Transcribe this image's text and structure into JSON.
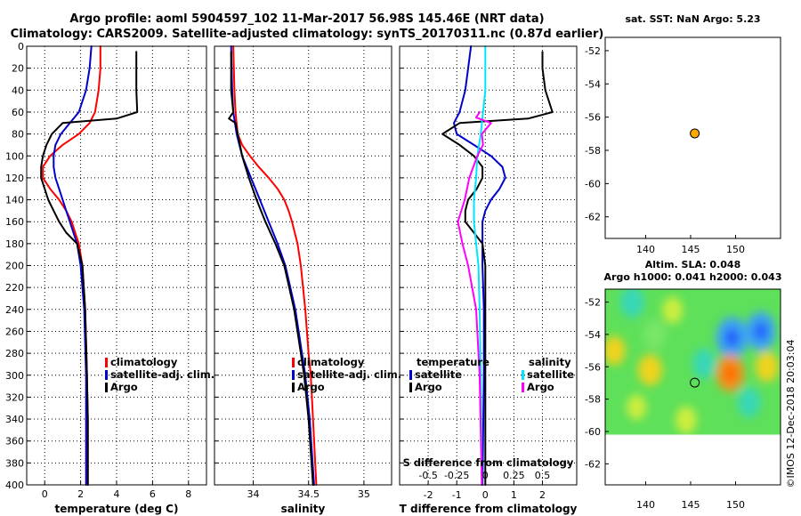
{
  "header": {
    "title": "Argo profile: aoml 5904597_102 11-Mar-2017 56.98S 145.46E (NRT data)",
    "subtitle": "Climatology: CARS2009. Satellite-adjusted climatology: synTS_20170311.nc (0.87d earlier)"
  },
  "watermark": "©IMOS 12-Dec-2018 20:03:04",
  "colors": {
    "climatology": "#ff0000",
    "satellite": "#0000cc",
    "argo": "#000000",
    "satellite_salinity": "#00e6ff",
    "argo_salinity": "#ff00ff",
    "marker": "#ffaa00"
  },
  "chart_data": [
    {
      "type": "line",
      "id": "temperature",
      "xlabel": "temperature (deg C)",
      "ylabel": "",
      "xlim": [
        -1,
        9
      ],
      "ylim": [
        400,
        0
      ],
      "xticks": [
        0,
        2,
        4,
        6,
        8
      ],
      "yticks": [
        0,
        20,
        40,
        60,
        80,
        100,
        120,
        140,
        160,
        180,
        200,
        220,
        240,
        260,
        280,
        300,
        320,
        340,
        360,
        380,
        400
      ],
      "grid": true,
      "legend": [
        "climatology",
        "satellite-adj. clim.",
        "Argo"
      ],
      "legend_position": "lower-right",
      "series": [
        {
          "name": "climatology",
          "color": "#ff0000",
          "depth": [
            0,
            20,
            40,
            60,
            70,
            80,
            90,
            100,
            110,
            120,
            130,
            140,
            150,
            160,
            170,
            180,
            200,
            240,
            300,
            340,
            400
          ],
          "values": [
            3.1,
            3.1,
            3.0,
            2.8,
            2.5,
            1.9,
            1.0,
            0.3,
            -0.1,
            -0.1,
            0.3,
            0.8,
            1.2,
            1.5,
            1.7,
            1.9,
            2.1,
            2.25,
            2.35,
            2.4,
            2.4
          ]
        },
        {
          "name": "satellite-adj. clim.",
          "color": "#0000cc",
          "depth": [
            0,
            20,
            40,
            60,
            70,
            80,
            90,
            100,
            110,
            120,
            130,
            140,
            150,
            160,
            170,
            180,
            200,
            240,
            300,
            340,
            400
          ],
          "values": [
            2.6,
            2.5,
            2.3,
            1.9,
            1.4,
            0.9,
            0.6,
            0.5,
            0.5,
            0.6,
            0.8,
            1.0,
            1.2,
            1.4,
            1.6,
            1.8,
            2.0,
            2.2,
            2.3,
            2.3,
            2.3
          ]
        },
        {
          "name": "Argo",
          "color": "#000000",
          "depth": [
            5,
            20,
            40,
            60,
            66,
            70,
            80,
            90,
            100,
            110,
            120,
            130,
            140,
            150,
            160,
            170,
            180,
            200,
            240,
            300,
            340,
            400
          ],
          "values": [
            5.1,
            5.1,
            5.1,
            5.15,
            4.0,
            1.0,
            0.4,
            0.1,
            -0.1,
            -0.2,
            -0.2,
            0.0,
            0.2,
            0.5,
            0.8,
            1.2,
            1.8,
            2.1,
            2.25,
            2.35,
            2.4,
            2.4
          ]
        }
      ]
    },
    {
      "type": "line",
      "id": "salinity",
      "xlabel": "salinity",
      "ylabel": "",
      "xlim": [
        33.65,
        35.25
      ],
      "ylim": [
        400,
        0
      ],
      "xticks": [
        34,
        34.5,
        35
      ],
      "xtick_labels": [
        "34",
        "34.5",
        "35"
      ],
      "grid": true,
      "legend": [
        "climatology",
        "satellite-adj. clim.",
        "Argo"
      ],
      "legend_position": "lower-right",
      "series": [
        {
          "name": "climatology",
          "color": "#ff0000",
          "depth": [
            0,
            40,
            60,
            80,
            90,
            100,
            110,
            120,
            130,
            140,
            150,
            160,
            180,
            200,
            240,
            280,
            300,
            340,
            400
          ],
          "values": [
            33.82,
            33.83,
            33.84,
            33.86,
            33.9,
            33.97,
            34.05,
            34.14,
            34.22,
            34.28,
            34.32,
            34.35,
            34.4,
            34.43,
            34.47,
            34.5,
            34.52,
            34.54,
            34.57
          ]
        },
        {
          "name": "satellite-adj. clim.",
          "color": "#0000cc",
          "depth": [
            0,
            40,
            60,
            80,
            100,
            120,
            140,
            160,
            180,
            200,
            240,
            280,
            300,
            340,
            400
          ],
          "values": [
            33.8,
            33.81,
            33.82,
            33.85,
            33.9,
            33.98,
            34.06,
            34.14,
            34.22,
            34.29,
            34.38,
            34.44,
            34.47,
            34.51,
            34.55
          ]
        },
        {
          "name": "Argo",
          "color": "#000000",
          "depth": [
            5,
            40,
            60,
            66,
            70,
            80,
            100,
            120,
            140,
            160,
            180,
            200,
            240,
            280,
            300,
            340,
            400
          ],
          "values": [
            33.8,
            33.8,
            33.82,
            33.78,
            33.84,
            33.86,
            33.9,
            33.96,
            34.03,
            34.11,
            34.2,
            34.28,
            34.37,
            34.43,
            34.46,
            34.5,
            34.54
          ]
        }
      ]
    },
    {
      "type": "line",
      "id": "difference",
      "xlabel": "T difference from climatology",
      "secondary_xlabel": "S difference from climatology",
      "xlim": [
        -3,
        3.2
      ],
      "ylim": [
        400,
        0
      ],
      "xticks": [
        -2,
        -1,
        0,
        1,
        2
      ],
      "secondary_xticks": [
        -0.5,
        -0.25,
        0,
        0.25,
        0.5
      ],
      "secondary_xtick_labels": [
        "-0.5",
        "-0.25",
        "0",
        "0.25",
        "0.5"
      ],
      "grid": true,
      "legend_temperature": {
        "heading": "temperature",
        "items": [
          "satellite",
          "Argo"
        ]
      },
      "legend_salinity": {
        "heading": "salinity",
        "items": [
          "satellite",
          "Argo"
        ]
      },
      "series": [
        {
          "name": "T satellite",
          "color": "#0000cc",
          "depth": [
            0,
            20,
            40,
            60,
            70,
            80,
            90,
            100,
            110,
            120,
            130,
            140,
            150,
            160,
            170,
            180,
            200,
            240,
            300,
            400
          ],
          "values": [
            -0.5,
            -0.6,
            -0.7,
            -0.9,
            -1.1,
            -1.0,
            -0.4,
            0.2,
            0.6,
            0.7,
            0.5,
            0.2,
            0.0,
            -0.1,
            -0.1,
            -0.1,
            -0.1,
            -0.05,
            -0.05,
            -0.1
          ]
        },
        {
          "name": "T Argo",
          "color": "#000000",
          "depth": [
            5,
            20,
            40,
            60,
            66,
            70,
            80,
            90,
            100,
            110,
            120,
            130,
            140,
            150,
            160,
            180,
            200,
            240,
            300,
            340,
            400
          ],
          "values": [
            2.0,
            2.0,
            2.1,
            2.35,
            1.5,
            -0.9,
            -1.5,
            -0.9,
            -0.4,
            -0.1,
            -0.1,
            -0.3,
            -0.6,
            -0.7,
            -0.7,
            -0.1,
            0.0,
            0.0,
            0.0,
            0.0,
            0.0
          ]
        },
        {
          "name": "S satellite",
          "color": "#00e6ff",
          "depth": [
            0,
            40,
            60,
            80,
            100,
            120,
            140,
            160,
            180,
            200,
            240,
            300,
            400
          ],
          "values": [
            0.0,
            0.0,
            -0.02,
            -0.04,
            -0.07,
            -0.08,
            -0.1,
            -0.1,
            -0.08,
            -0.06,
            -0.05,
            -0.04,
            -0.03
          ]
        },
        {
          "name": "S Argo",
          "color": "#ff00ff",
          "depth": [
            60,
            65,
            70,
            80,
            90,
            100,
            120,
            140,
            160,
            180,
            200,
            240,
            300,
            400
          ],
          "values": [
            -0.05,
            -0.08,
            0.05,
            -0.03,
            -0.02,
            -0.07,
            -0.14,
            -0.18,
            -0.24,
            -0.2,
            -0.15,
            -0.08,
            -0.05,
            -0.03
          ]
        }
      ]
    },
    {
      "type": "scatter",
      "id": "sst_map",
      "title": "sat. SST: NaN Argo: 5.23",
      "xlim": [
        135.5,
        155
      ],
      "ylim": [
        -63.3,
        -51.2
      ],
      "xticks": [
        140,
        145,
        150
      ],
      "yticks": [
        -52,
        -54,
        -56,
        -58,
        -60,
        -62
      ],
      "points": [
        {
          "lon": 145.46,
          "lat": -56.98,
          "color": "#ffaa00"
        }
      ]
    },
    {
      "type": "heatmap",
      "id": "sla_map",
      "title": "Altim. SLA: 0.048",
      "subtitle": "Argo h1000: 0.041 h2000: 0.043",
      "xlim": [
        135.5,
        155
      ],
      "ylim": [
        -63.3,
        -51.2
      ],
      "data_lat_range": [
        -60.2,
        -51.2
      ],
      "xticks": [
        140,
        145,
        150
      ],
      "yticks": [
        -52,
        -54,
        -56,
        -58,
        -60,
        -62
      ],
      "points": [
        {
          "lon": 145.46,
          "lat": -56.98
        }
      ],
      "blobs": [
        {
          "lon": 149.6,
          "lat": -54.2,
          "value": 1.0
        },
        {
          "lon": 152.8,
          "lat": -53.8,
          "value": 0.9
        },
        {
          "lon": 138.5,
          "lat": -52.0,
          "value": 0.55
        },
        {
          "lon": 146.5,
          "lat": -55.8,
          "value": 0.5
        },
        {
          "lon": 141.0,
          "lat": -54.0,
          "value": 0.45
        },
        {
          "lon": 151.5,
          "lat": -58.2,
          "value": 0.5
        },
        {
          "lon": 136.5,
          "lat": -55.0,
          "value": -0.45
        },
        {
          "lon": 140.5,
          "lat": -56.2,
          "value": -0.55
        },
        {
          "lon": 149.4,
          "lat": -56.4,
          "value": -0.8
        },
        {
          "lon": 143.0,
          "lat": -52.5,
          "value": -0.35
        },
        {
          "lon": 153.5,
          "lat": -56.0,
          "value": -0.5
        },
        {
          "lon": 144.5,
          "lat": -59.3,
          "value": -0.4
        },
        {
          "lon": 139.0,
          "lat": -58.5,
          "value": -0.3
        }
      ]
    }
  ]
}
